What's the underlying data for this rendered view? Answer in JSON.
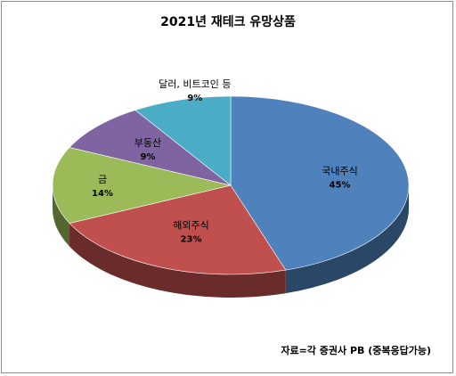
{
  "chart_data": {
    "type": "pie",
    "title": "2021년 재테크 유망상품",
    "categories": [
      "국내주식",
      "해외주식",
      "금",
      "부동산",
      "달러, 비트코인 등"
    ],
    "values": [
      45,
      23,
      14,
      9,
      9
    ],
    "value_labels": [
      "45%",
      "23%",
      "14%",
      "9%",
      "9%"
    ],
    "colors": [
      "#4f81bd",
      "#c0504d",
      "#9bbb59",
      "#8064a2",
      "#4bacc6"
    ],
    "style": "3d-pie"
  },
  "source_note": "자료=각 증권사 PB (중복응답가능)"
}
